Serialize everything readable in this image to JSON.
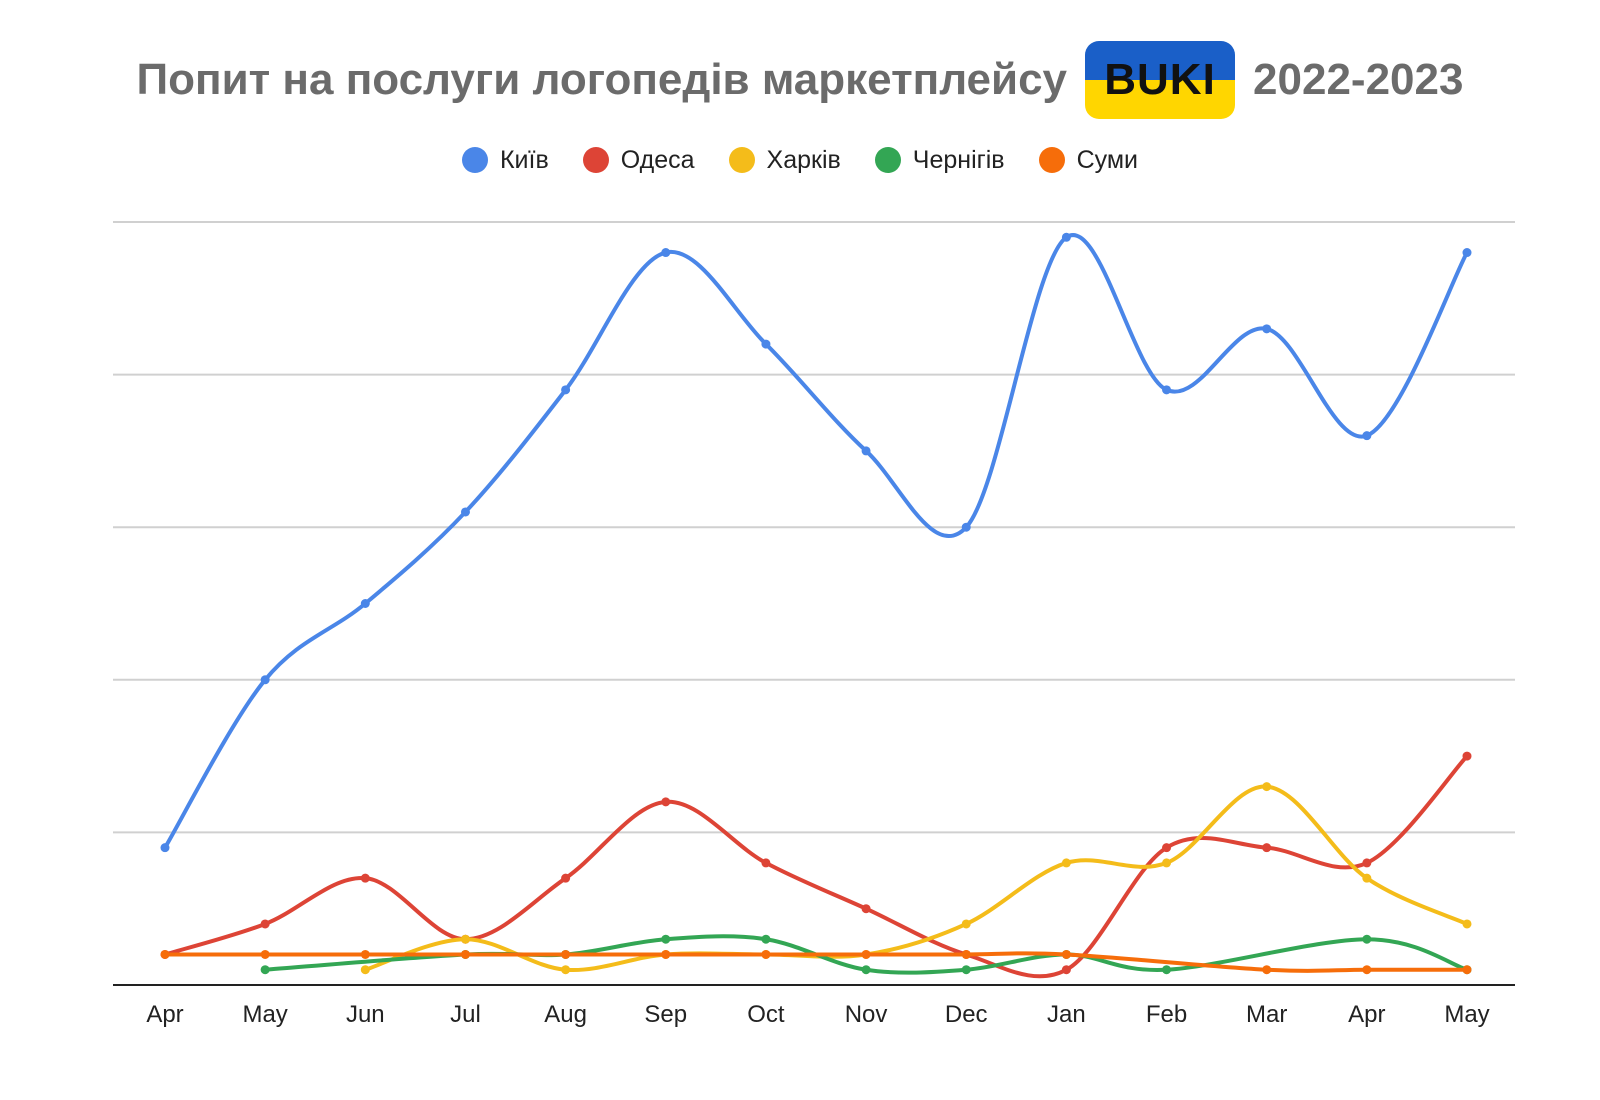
{
  "header": {
    "title_main": "Попит на послуги логопедів маркетплейсу",
    "logo_text": "BUKI",
    "title_years": "2022-2023"
  },
  "chart_data": {
    "type": "line",
    "title": "Попит на послуги логопедів маркетплейсу BUKI 2022-2023",
    "xlabel": "",
    "ylabel": "",
    "categories": [
      "Apr",
      "May",
      "Jun",
      "Jul",
      "Aug",
      "Sep",
      "Oct",
      "Nov",
      "Dec",
      "Jan",
      "Feb",
      "Mar",
      "Apr",
      "May"
    ],
    "ylim": [
      0,
      100
    ],
    "grid": true,
    "legend_position": "top",
    "y_tick_labels_shown": false,
    "series": [
      {
        "name": "Київ",
        "color": "#4a86e8",
        "values": [
          18,
          40,
          50,
          62,
          78,
          96,
          84,
          70,
          60,
          98,
          78,
          86,
          72,
          96
        ]
      },
      {
        "name": "Одеса",
        "color": "#dd4436",
        "values": [
          4,
          8,
          14,
          6,
          14,
          24,
          16,
          10,
          4,
          2,
          18,
          18,
          16,
          30
        ]
      },
      {
        "name": "Харків",
        "color": "#f4bc1a",
        "values": [
          null,
          null,
          2,
          6,
          2,
          4,
          4,
          4,
          8,
          16,
          16,
          26,
          14,
          8
        ]
      },
      {
        "name": "Чернігів",
        "color": "#33a654",
        "values": [
          null,
          2,
          null,
          4,
          4,
          6,
          6,
          2,
          2,
          4,
          2,
          null,
          6,
          2
        ]
      },
      {
        "name": "Суми",
        "color": "#f66d0a",
        "values": [
          4,
          4,
          4,
          4,
          4,
          4,
          4,
          4,
          4,
          4,
          null,
          2,
          2,
          2
        ]
      }
    ]
  }
}
